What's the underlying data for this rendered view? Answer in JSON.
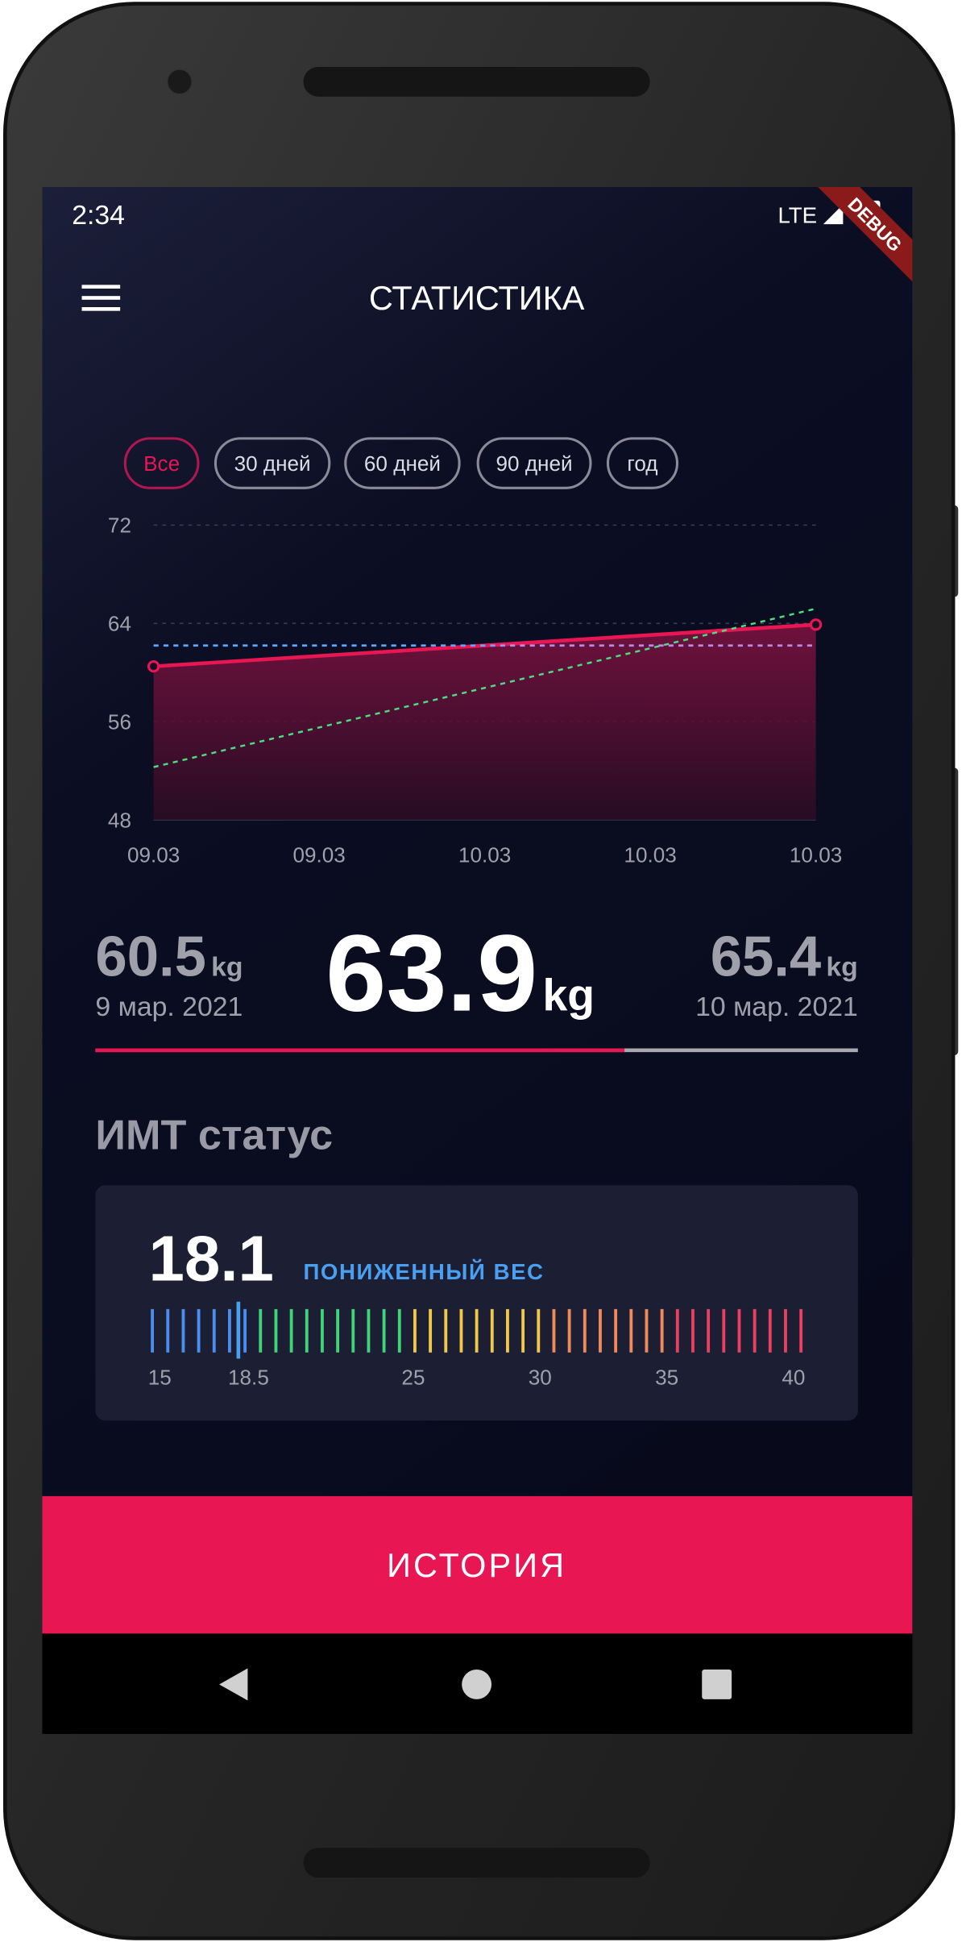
{
  "status_bar": {
    "time": "2:34",
    "network": "LTE"
  },
  "debug_banner": "DEBUG",
  "header": {
    "title": "СТАТИСТИКА"
  },
  "filters": [
    "Все",
    "30 дней",
    "60 дней",
    "90 дней",
    "год"
  ],
  "chart_data": {
    "type": "line",
    "x": [
      0,
      4
    ],
    "series": [
      {
        "color": "#e91654",
        "values": [
          60.5,
          63.9
        ]
      },
      {
        "color": "#4ade80",
        "values": [
          52.3,
          65.2
        ],
        "dashed": true
      }
    ],
    "reference_lines": [
      {
        "color": "#5aa9ff",
        "value": 62.2
      }
    ],
    "xlim": [
      0,
      4
    ],
    "xticks": [
      {
        "value": 0,
        "label": "09.03"
      },
      {
        "value": 1,
        "label": "09.03"
      },
      {
        "value": 2,
        "label": "10.03"
      },
      {
        "value": 3,
        "label": "10.03"
      },
      {
        "value": 4,
        "label": "10.03"
      }
    ],
    "ylim": [
      48,
      72
    ],
    "yticks": [
      48,
      56,
      64,
      72
    ],
    "grid": true
  },
  "summary": {
    "start": {
      "value": 60.5,
      "unit": "kg",
      "date": "9 мар. 2021"
    },
    "current": {
      "value": 63.9,
      "unit": "kg"
    },
    "goal": {
      "value": 65.4,
      "unit": "kg",
      "date": "10 мар. 2021"
    }
  },
  "bmi": {
    "title": "ИМТ статус",
    "value": 18.1,
    "status": "ПОНИЖЕННЫЙ ВЕС",
    "ticks": [
      15,
      18.5,
      25,
      30,
      35,
      40
    ]
  },
  "button": "ИСТОРИЯ"
}
